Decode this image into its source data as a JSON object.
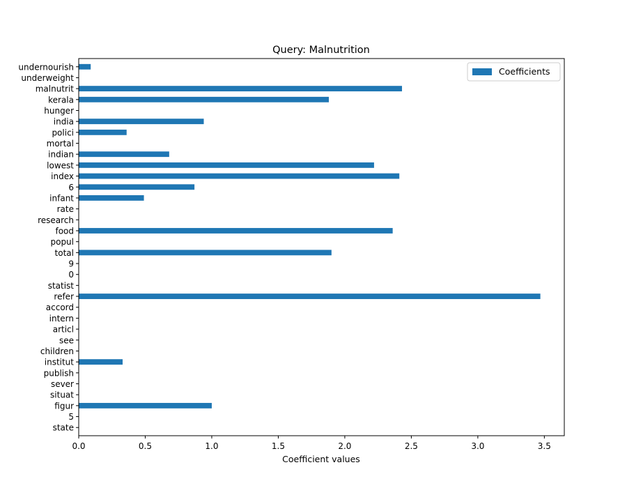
{
  "chart_data": {
    "type": "bar",
    "orientation": "horizontal",
    "title": "Query: Malnutrition",
    "xlabel": "Coefficient values",
    "ylabel": "",
    "xlim": [
      0,
      3.65
    ],
    "xticks": [
      0.0,
      0.5,
      1.0,
      1.5,
      2.0,
      2.5,
      3.0,
      3.5
    ],
    "xtick_labels": [
      "0.0",
      "0.5",
      "1.0",
      "1.5",
      "2.0",
      "2.5",
      "3.0",
      "3.5"
    ],
    "grid": false,
    "legend_position": "top-right",
    "categories": [
      "state",
      "5",
      "figur",
      "situat",
      "sever",
      "publish",
      "institut",
      "children",
      "see",
      "articl",
      "intern",
      "accord",
      "refer",
      "statist",
      "0",
      "9",
      "total",
      "popul",
      "food",
      "research",
      "rate",
      "infant",
      "6",
      "index",
      "lowest",
      "indian",
      "mortal",
      "polici",
      "india",
      "hunger",
      "kerala",
      "malnutrit",
      "underweight",
      "undernourish"
    ],
    "series": [
      {
        "name": "Coefficients",
        "color": "#1f77b4",
        "values": [
          0,
          0,
          1.0,
          0,
          0,
          0,
          0.33,
          0,
          0,
          0,
          0,
          0,
          3.47,
          0,
          0,
          0,
          1.9,
          0,
          2.36,
          0,
          0,
          0.49,
          0.87,
          2.41,
          2.22,
          0.68,
          0,
          0.36,
          0.94,
          0,
          1.88,
          2.43,
          0,
          0.09
        ]
      }
    ]
  }
}
